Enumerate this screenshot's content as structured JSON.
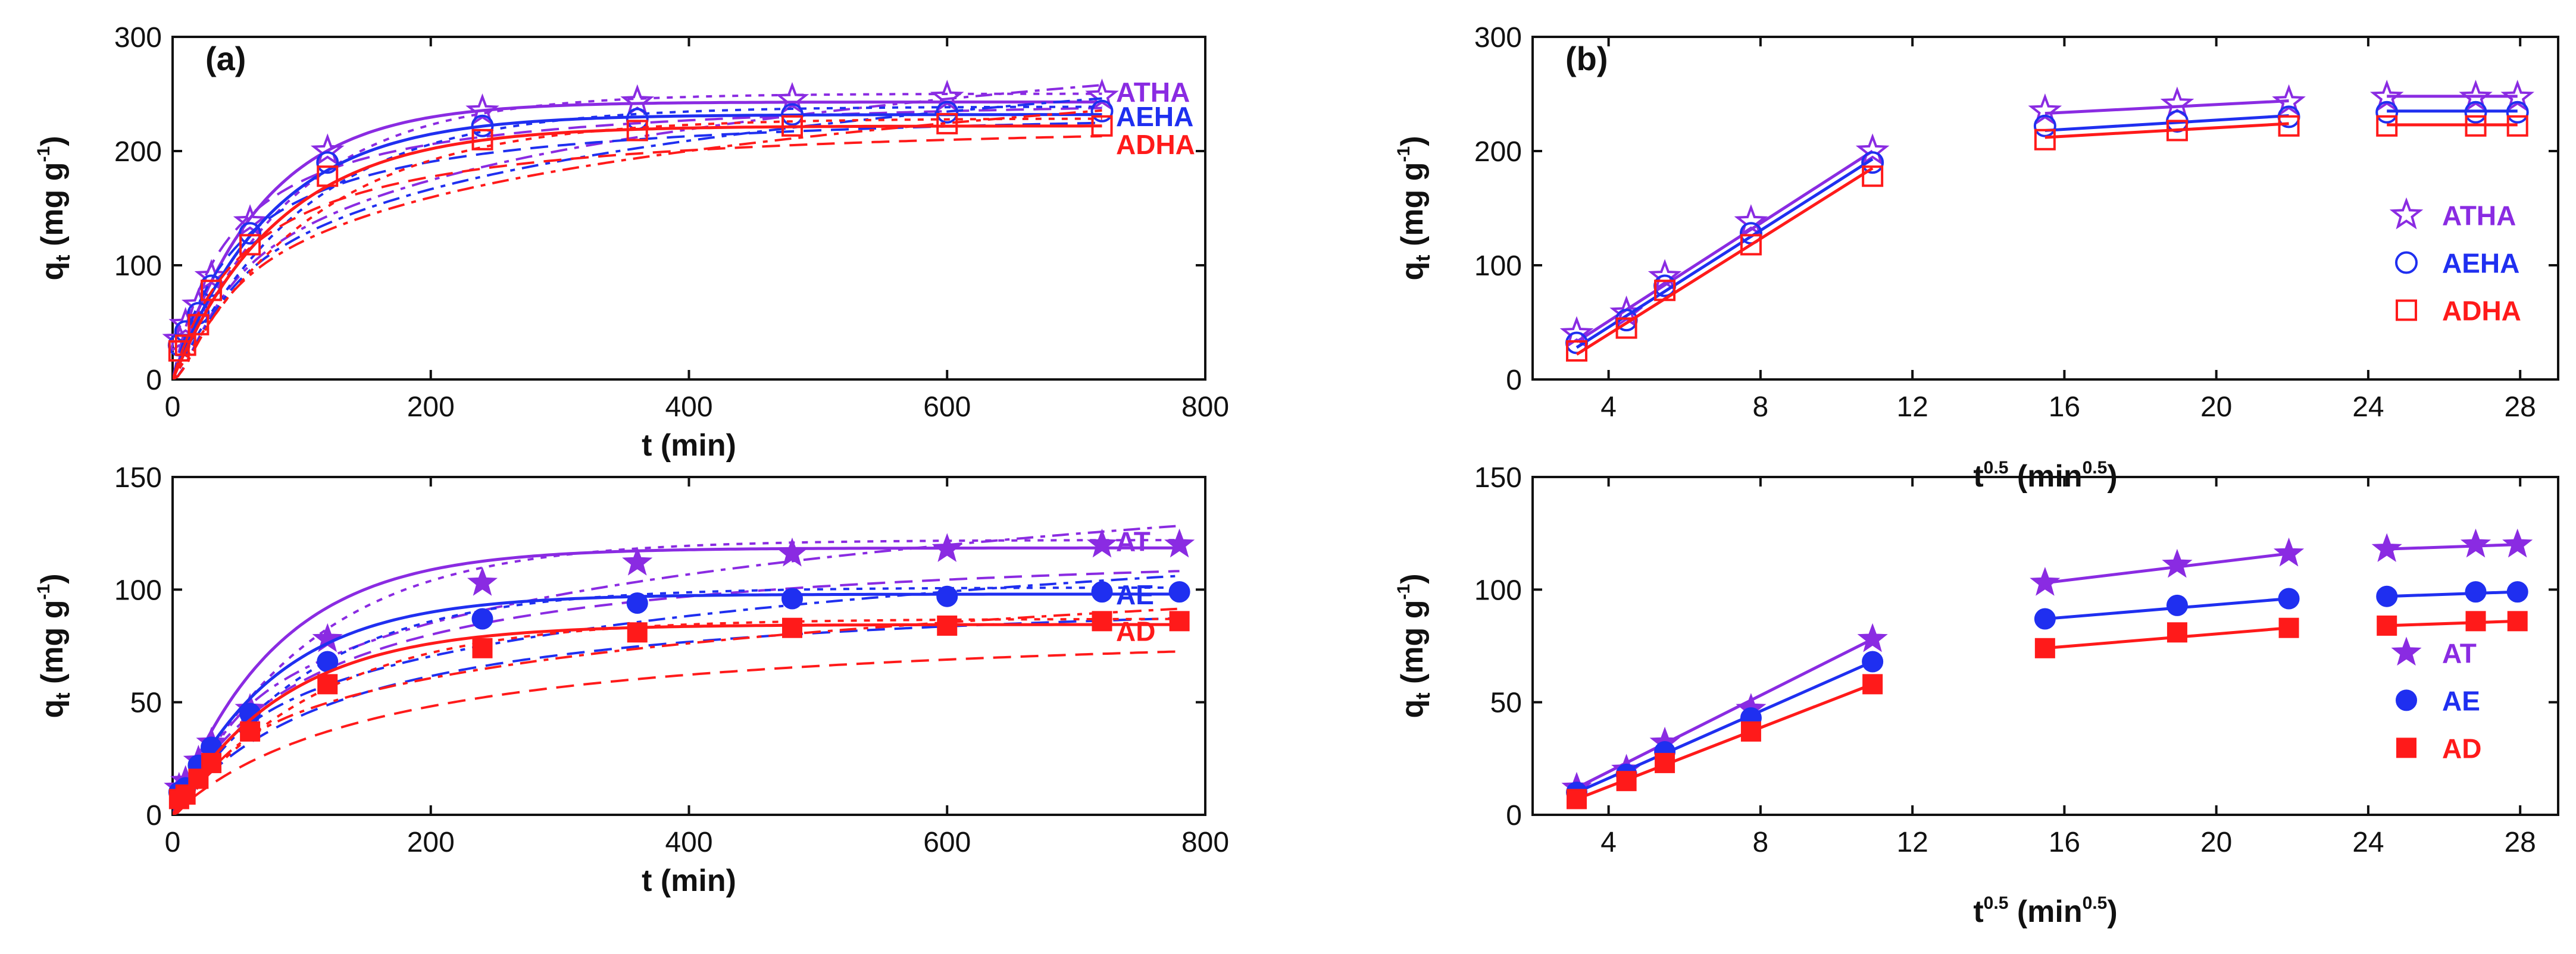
{
  "colors": {
    "purple": "#8a2be2",
    "blue": "#1f2ff0",
    "red": "#ff1a1a",
    "axis": "#111111"
  },
  "panel_labels": {
    "a": "(a)",
    "b": "(b)"
  },
  "axis_text": {
    "q_main": "q",
    "q_sub": "t",
    "q_units": "(mg g",
    "q_sup": "-1",
    "q_close": ")",
    "t_label": "t (min)",
    "s_main": "t",
    "s_sup": "0.5",
    "s_units": "(min",
    "s_close": ")"
  },
  "chart_data": [
    {
      "id": "top-left",
      "type": "scatter",
      "xlim": [
        0,
        800
      ],
      "ylim": [
        0,
        300
      ],
      "xticks": [
        0,
        200,
        400,
        600,
        800
      ],
      "yticks": [
        0,
        100,
        200,
        300
      ],
      "xlabel": "t (min)",
      "ylabel": "qt (mg g-1)",
      "labels_position": "right-inline",
      "series": [
        {
          "name": "ATHA",
          "marker": "star-open",
          "color": "#8a2be2",
          "x": [
            5,
            10,
            20,
            30,
            60,
            120,
            240,
            360,
            480,
            600,
            720
          ],
          "y": [
            35,
            48,
            65,
            90,
            138,
            200,
            235,
            243,
            245,
            247,
            248
          ],
          "fit": {
            "qe": 243,
            "k": 0.0145,
            "tmax": 720
          }
        },
        {
          "name": "AEHA",
          "marker": "circle-open",
          "color": "#1f2ff0",
          "x": [
            5,
            10,
            20,
            30,
            60,
            120,
            240,
            360,
            480,
            600,
            720
          ],
          "y": [
            30,
            42,
            58,
            82,
            128,
            190,
            222,
            228,
            232,
            234,
            235
          ],
          "fit": {
            "qe": 232,
            "k": 0.013,
            "tmax": 720
          }
        },
        {
          "name": "ADHA",
          "marker": "square-open",
          "color": "#ff1a1a",
          "x": [
            5,
            10,
            20,
            30,
            60,
            120,
            240,
            360,
            480,
            600,
            720
          ],
          "y": [
            25,
            30,
            48,
            78,
            118,
            178,
            210,
            218,
            222,
            224,
            222
          ],
          "fit": {
            "qe": 222,
            "k": 0.012,
            "tmax": 720
          }
        }
      ]
    },
    {
      "id": "top-right",
      "type": "scatter",
      "xlim": [
        2,
        29
      ],
      "ylim": [
        0,
        300
      ],
      "xticks": [
        4,
        8,
        12,
        16,
        20,
        24,
        28
      ],
      "yticks": [
        0,
        100,
        200,
        300
      ],
      "xlabel": "t0.5 (min0.5)",
      "ylabel": "qt (mg g-1)",
      "legend_position": "right",
      "series": [
        {
          "name": "ATHA",
          "marker": "star-open",
          "color": "#8a2be2",
          "x": [
            3.16,
            4.47,
            5.48,
            7.75,
            10.95,
            15.49,
            18.97,
            21.91,
            24.49,
            26.83,
            27.93
          ],
          "y": [
            40,
            58,
            90,
            138,
            200,
            235,
            241,
            243,
            247,
            247,
            247
          ],
          "segments": [
            [
              [
                3.16,
                33
              ],
              [
                10.95,
                200
              ]
            ],
            [
              [
                15.49,
                233
              ],
              [
                21.91,
                244
              ]
            ],
            [
              [
                24.49,
                248
              ],
              [
                27.93,
                248
              ]
            ]
          ]
        },
        {
          "name": "AEHA",
          "marker": "circle-open",
          "color": "#1f2ff0",
          "x": [
            3.16,
            4.47,
            5.48,
            7.75,
            10.95,
            15.49,
            18.97,
            21.91,
            24.49,
            26.83,
            27.93
          ],
          "y": [
            32,
            52,
            82,
            128,
            190,
            222,
            226,
            230,
            234,
            234,
            234
          ],
          "segments": [
            [
              [
                3.16,
                28
              ],
              [
                10.95,
                193
              ]
            ],
            [
              [
                15.49,
                218
              ],
              [
                21.91,
                231
              ]
            ],
            [
              [
                24.49,
                235
              ],
              [
                27.93,
                235
              ]
            ]
          ]
        },
        {
          "name": "ADHA",
          "marker": "square-open",
          "color": "#ff1a1a",
          "x": [
            3.16,
            4.47,
            5.48,
            7.75,
            10.95,
            15.49,
            18.97,
            21.91,
            24.49,
            26.83,
            27.93
          ],
          "y": [
            25,
            45,
            78,
            118,
            178,
            210,
            218,
            222,
            222,
            222,
            222
          ],
          "segments": [
            [
              [
                3.16,
                22
              ],
              [
                10.95,
                185
              ]
            ],
            [
              [
                15.49,
                212
              ],
              [
                21.91,
                224
              ]
            ],
            [
              [
                24.49,
                223
              ],
              [
                27.93,
                223
              ]
            ]
          ]
        }
      ]
    },
    {
      "id": "bottom-left",
      "type": "scatter",
      "xlim": [
        0,
        800
      ],
      "ylim": [
        0,
        150
      ],
      "xticks": [
        0,
        200,
        400,
        600,
        800
      ],
      "yticks": [
        0,
        50,
        100,
        150
      ],
      "xlabel": "t (min)",
      "ylabel": "qt (mg g-1)",
      "labels_position": "right-inline",
      "series": [
        {
          "name": "AT",
          "marker": "star-filled",
          "color": "#8a2be2",
          "x": [
            5,
            10,
            20,
            30,
            60,
            120,
            240,
            360,
            480,
            600,
            720,
            780
          ],
          "y": [
            12,
            15,
            24,
            32,
            47,
            78,
            103,
            112,
            116,
            118,
            120,
            120
          ],
          "fit": {
            "qe": 118.5,
            "k": 0.0125,
            "tmax": 780
          }
        },
        {
          "name": "AE",
          "marker": "circle-filled",
          "color": "#1f2ff0",
          "x": [
            5,
            10,
            20,
            30,
            60,
            120,
            240,
            360,
            480,
            600,
            720,
            780
          ],
          "y": [
            10,
            12,
            22,
            30,
            45,
            68,
            87,
            94,
            96,
            97,
            99,
            99
          ],
          "fit": {
            "qe": 98,
            "k": 0.0125,
            "tmax": 780
          }
        },
        {
          "name": "AD",
          "marker": "square-filled",
          "color": "#ff1a1a",
          "x": [
            5,
            10,
            20,
            30,
            60,
            120,
            240,
            360,
            480,
            600,
            720,
            780
          ],
          "y": [
            7,
            9,
            16,
            23,
            37,
            58,
            74,
            81,
            83,
            84,
            86,
            86
          ],
          "fit": {
            "qe": 84.5,
            "k": 0.0115,
            "tmax": 780
          }
        }
      ]
    },
    {
      "id": "bottom-right",
      "type": "scatter",
      "xlim": [
        2,
        29
      ],
      "ylim": [
        0,
        150
      ],
      "xticks": [
        4,
        8,
        12,
        16,
        20,
        24,
        28
      ],
      "yticks": [
        0,
        50,
        100,
        150
      ],
      "xlabel": "t0.5 (min0.5)",
      "ylabel": "qt (mg g-1)",
      "legend_position": "right",
      "series": [
        {
          "name": "AT",
          "marker": "star-filled",
          "color": "#8a2be2",
          "x": [
            3.16,
            4.47,
            5.48,
            7.75,
            10.95,
            15.49,
            18.97,
            21.91,
            24.49,
            26.83,
            27.93
          ],
          "y": [
            12,
            20,
            32,
            47,
            78,
            103,
            111,
            116,
            118,
            120,
            120
          ]
        },
        {
          "name": "AE",
          "marker": "circle-filled",
          "color": "#1f2ff0",
          "x": [
            3.16,
            4.47,
            5.48,
            7.75,
            10.95,
            15.49,
            18.97,
            21.91,
            24.49,
            26.83,
            27.93
          ],
          "y": [
            10,
            18,
            28,
            43,
            68,
            87,
            93,
            96,
            97,
            99,
            99
          ]
        },
        {
          "name": "AD",
          "marker": "square-filled",
          "color": "#ff1a1a",
          "x": [
            3.16,
            4.47,
            5.48,
            7.75,
            10.95,
            15.49,
            18.97,
            21.91,
            24.49,
            26.83,
            27.93
          ],
          "y": [
            7,
            15,
            23,
            37,
            58,
            74,
            81,
            83,
            84,
            86,
            86
          ]
        }
      ]
    }
  ]
}
